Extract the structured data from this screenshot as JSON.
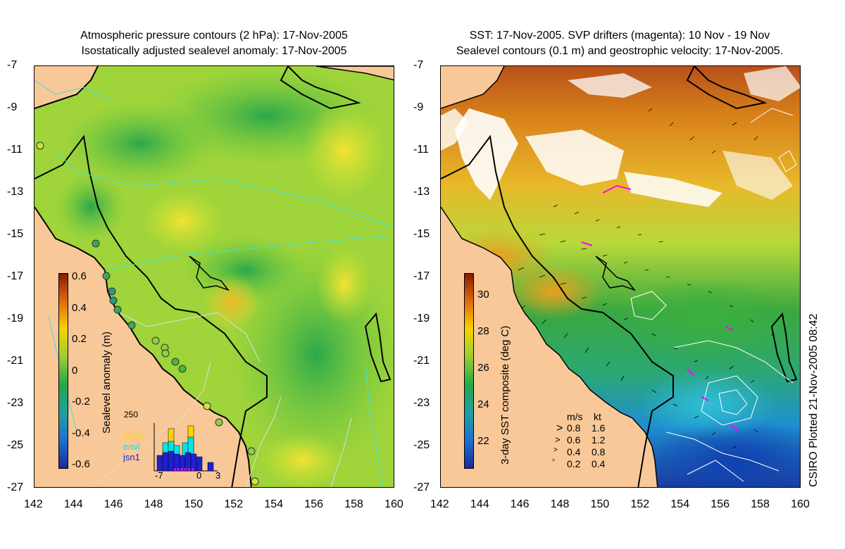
{
  "left_panel": {
    "title_line1": "Atmospheric pressure contours (2 hPa): 17-Nov-2005",
    "title_line2": "Isostatically adjusted sealevel anomaly: 17-Nov-2005",
    "colorbar_label": "Sealevel anomaly (m)",
    "colorbar_ticks": [
      "0.6",
      "0.4",
      "0.2",
      "0",
      "-0.2",
      "-0.4",
      "-0.6"
    ],
    "colorbar_colors": [
      "#8b1a00",
      "#e06a10",
      "#f5d400",
      "#9acd32",
      "#22a84a",
      "#1fa0a0",
      "#1e6fd0",
      "#1a2a9a"
    ],
    "histogram": {
      "ymax_label": "250",
      "legend": [
        "GFO",
        "envi",
        "jsn1"
      ],
      "legend_colors": [
        "#ffd400",
        "#00e6e6",
        "#2020d0"
      ],
      "x_ticks": [
        "-7",
        "0",
        "3"
      ]
    }
  },
  "right_panel": {
    "title_line1": "SST: 17-Nov-2005. SVP drifters (magenta): 10 Nov - 19 Nov",
    "title_line2": "Sealevel contours (0.1 m) and geostrophic velocity: 17-Nov-2005.",
    "colorbar_label": "3-day SST composite (deg C)",
    "colorbar_ticks": [
      "30",
      "28",
      "26",
      "24",
      "22"
    ],
    "colorbar_colors": [
      "#8b1a00",
      "#e06a10",
      "#f5d400",
      "#9acd32",
      "#22a84a",
      "#1fa0a0",
      "#1e6fd0",
      "#1a2a9a"
    ],
    "velocity_legend": {
      "header_ms": "m/s",
      "header_kt": "kt",
      "rows": [
        {
          "ms": "0.8",
          "kt": "1.6"
        },
        {
          "ms": "0.6",
          "kt": "1.2"
        },
        {
          "ms": "0.4",
          "kt": "0.8"
        },
        {
          "ms": "0.2",
          "kt": "0.4"
        }
      ]
    }
  },
  "axes": {
    "y_ticks": [
      "-7",
      "-9",
      "-11",
      "-13",
      "-15",
      "-17",
      "-19",
      "-21",
      "-23",
      "-25",
      "-27"
    ],
    "x_ticks": [
      "142",
      "144",
      "146",
      "148",
      "150",
      "152",
      "154",
      "156",
      "158",
      "160"
    ]
  },
  "credit": "CSIRO Plotted 21-Nov-2005 08:42",
  "colors": {
    "land": "#f8c898",
    "coast": "#000000",
    "cloud": "#ffffff",
    "drifter": "#ff00ff",
    "isobath": "#40e0e0"
  }
}
